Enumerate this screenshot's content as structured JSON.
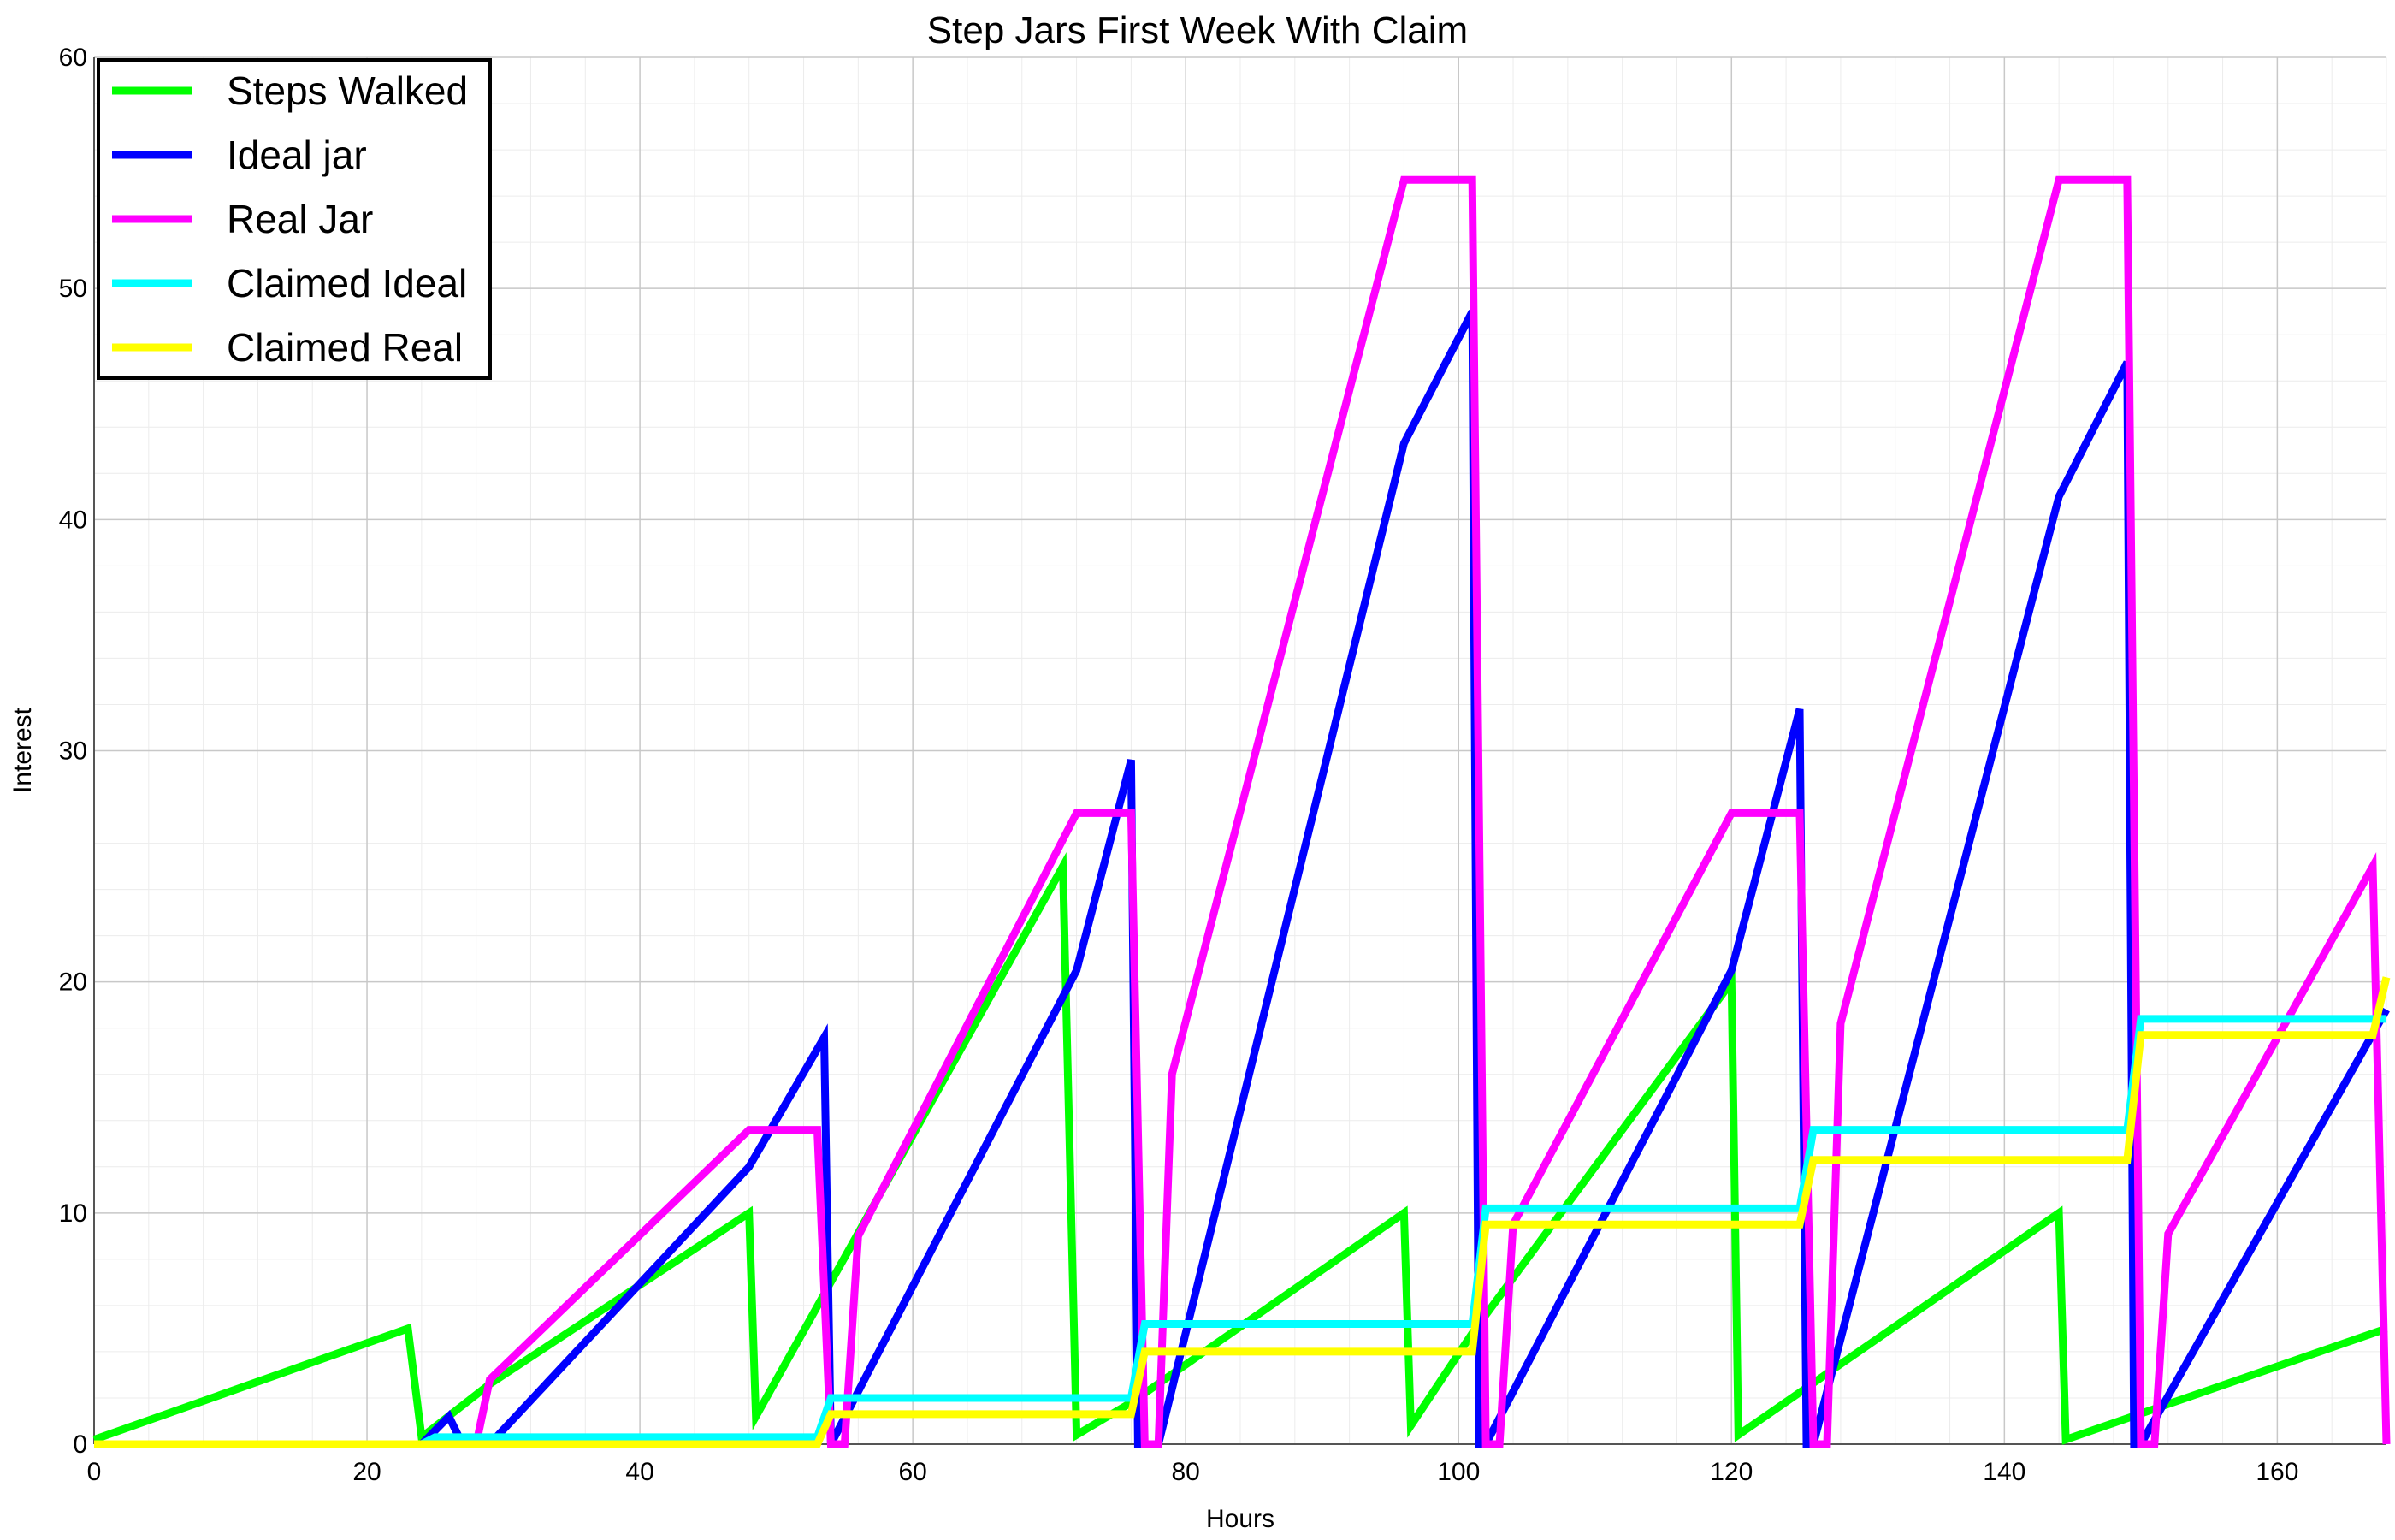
{
  "chart_data": {
    "type": "line",
    "title": "Step Jars First Week With Claim",
    "xlabel": "Hours",
    "ylabel": "Interest",
    "xlim": [
      0,
      168
    ],
    "ylim": [
      0,
      60
    ],
    "xticks": [
      0,
      20,
      40,
      60,
      80,
      100,
      120,
      140,
      160
    ],
    "yticks": [
      0,
      10,
      20,
      30,
      40,
      50,
      60
    ],
    "grid": true,
    "legend_position": "top-left",
    "series": [
      {
        "name": "Steps Walked",
        "color": "#00ff00",
        "points": [
          [
            0,
            0.2
          ],
          [
            23,
            5
          ],
          [
            24,
            0.3
          ],
          [
            29,
            2.6
          ],
          [
            48,
            10
          ],
          [
            48.5,
            1.2
          ],
          [
            71,
            25
          ],
          [
            72,
            0.4
          ],
          [
            76,
            1.8
          ],
          [
            96,
            10
          ],
          [
            96.5,
            0.8
          ],
          [
            101,
            4.8
          ],
          [
            120,
            20
          ],
          [
            120.5,
            0.4
          ],
          [
            144,
            10
          ],
          [
            144.5,
            0.2
          ],
          [
            168,
            5
          ]
        ]
      },
      {
        "name": "Ideal jar",
        "color": "#0000ff",
        "points": [
          [
            0,
            0
          ],
          [
            24,
            0
          ],
          [
            26,
            1.2
          ],
          [
            27,
            0
          ],
          [
            29,
            0
          ],
          [
            48,
            12
          ],
          [
            53.5,
            17.6
          ],
          [
            54,
            0
          ],
          [
            72,
            20.5
          ],
          [
            76,
            29.6
          ],
          [
            76.5,
            0
          ],
          [
            78,
            0
          ],
          [
            96,
            43.3
          ],
          [
            101,
            49
          ],
          [
            101.5,
            0
          ],
          [
            102,
            0
          ],
          [
            120,
            20.5
          ],
          [
            125,
            31.8
          ],
          [
            125.5,
            0
          ],
          [
            126,
            0
          ],
          [
            144,
            41
          ],
          [
            149,
            46.8
          ],
          [
            149.5,
            0
          ],
          [
            150,
            0
          ],
          [
            168,
            18.8
          ]
        ]
      },
      {
        "name": "Real Jar",
        "color": "#ff00ff",
        "points": [
          [
            0,
            0
          ],
          [
            28,
            0
          ],
          [
            29,
            2.8
          ],
          [
            48,
            13.6
          ],
          [
            53,
            13.6
          ],
          [
            54,
            0
          ],
          [
            55,
            0
          ],
          [
            56,
            9
          ],
          [
            72,
            27.3
          ],
          [
            76,
            27.3
          ],
          [
            77,
            0
          ],
          [
            78,
            0
          ],
          [
            79,
            16
          ],
          [
            96,
            54.7
          ],
          [
            101,
            54.7
          ],
          [
            102,
            0
          ],
          [
            103,
            0
          ],
          [
            104,
            9.5
          ],
          [
            120,
            27.3
          ],
          [
            125,
            27.3
          ],
          [
            126,
            0
          ],
          [
            127,
            0
          ],
          [
            128,
            18.2
          ],
          [
            144,
            54.7
          ],
          [
            149,
            54.7
          ],
          [
            150,
            0
          ],
          [
            151,
            0
          ],
          [
            152,
            9.1
          ],
          [
            167,
            25
          ],
          [
            168,
            0
          ]
        ]
      },
      {
        "name": "Claimed Ideal",
        "color": "#00ffff",
        "points": [
          [
            0,
            0
          ],
          [
            24,
            0
          ],
          [
            25,
            0.3
          ],
          [
            53,
            0.3
          ],
          [
            54,
            2
          ],
          [
            76,
            2
          ],
          [
            77,
            5.2
          ],
          [
            101,
            5.2
          ],
          [
            102,
            10.2
          ],
          [
            125,
            10.2
          ],
          [
            126,
            13.6
          ],
          [
            149,
            13.6
          ],
          [
            150,
            18.4
          ],
          [
            168,
            18.4
          ]
        ]
      },
      {
        "name": "Claimed Real",
        "color": "#ffff00",
        "points": [
          [
            0,
            0
          ],
          [
            53,
            0
          ],
          [
            54,
            1.3
          ],
          [
            76,
            1.3
          ],
          [
            77,
            4
          ],
          [
            101,
            4
          ],
          [
            102,
            9.5
          ],
          [
            125,
            9.5
          ],
          [
            126,
            12.3
          ],
          [
            149,
            12.3
          ],
          [
            150,
            17.7
          ],
          [
            167,
            17.7
          ],
          [
            168,
            20.2
          ]
        ]
      }
    ]
  }
}
